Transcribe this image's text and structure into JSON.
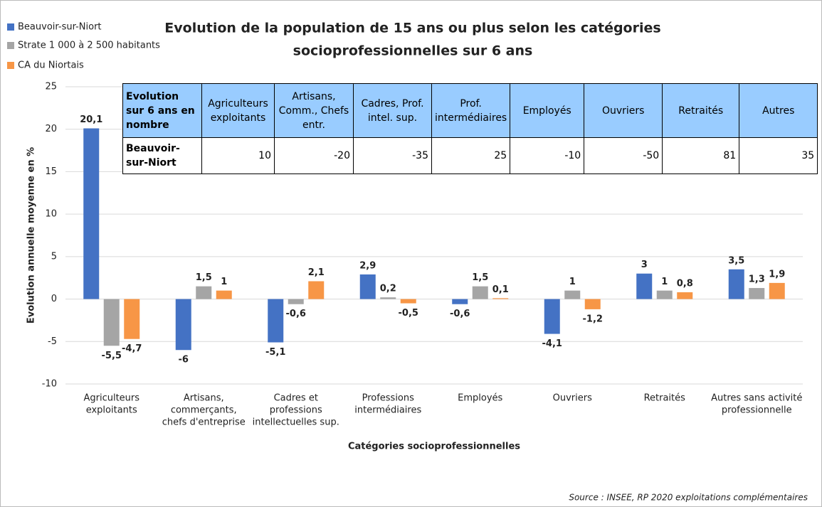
{
  "chart_data": {
    "type": "bar",
    "title": [
      "Evolution de la population de 15 ans ou plus selon les catégories",
      "socioprofessionnelles sur 6 ans"
    ],
    "x_label": "Catégories socioprofessionnelles",
    "y_label": "Evolution annuelle moyenne en %",
    "source": "Source : INSEE, RP 2020 exploitations complémentaires",
    "categories": [
      [
        "Agriculteurs",
        "exploitants"
      ],
      [
        "Artisans,",
        "commerçants,",
        "chefs d'entreprise"
      ],
      [
        "Cadres et",
        "professions",
        "intellectuelles sup."
      ],
      [
        "Professions",
        "intermédiaires"
      ],
      [
        "Employés"
      ],
      [
        "Ouvriers"
      ],
      [
        "Retraités"
      ],
      [
        "Autres sans activité",
        "professionnelle"
      ]
    ],
    "series": [
      {
        "name": "Beauvoir-sur-Niort",
        "color": "#4472c4",
        "values": [
          20.1,
          -6,
          -5.1,
          2.9,
          -0.6,
          -4.1,
          3,
          3.5
        ],
        "value_labels": [
          "20,1",
          "-6",
          "-5,1",
          "2,9",
          "-0,6",
          "-4,1",
          "3",
          "3,5"
        ]
      },
      {
        "name": "Strate 1 000 à 2 500 habitants",
        "color": "#a5a5a5",
        "values": [
          -5.5,
          1.5,
          -0.6,
          0.2,
          1.5,
          1,
          1,
          1.3
        ],
        "value_labels": [
          "-5,5",
          "1,5",
          "-0,6",
          "0,2",
          "1,5",
          "1",
          "1",
          "1,3"
        ]
      },
      {
        "name": "CA du Niortais",
        "color": "#f79646",
        "values": [
          -4.7,
          1,
          2.1,
          -0.5,
          0.1,
          -1.2,
          0.8,
          1.9
        ],
        "value_labels": [
          "-4,7",
          "1",
          "2,1",
          "-0,5",
          "0,1",
          "-1,2",
          "0,8",
          "1,9"
        ]
      }
    ],
    "ylim": [
      -10,
      25
    ],
    "yticks": [
      -10,
      -5,
      0,
      5,
      10,
      15,
      20,
      25
    ],
    "grid": true
  },
  "table": {
    "header": [
      "Evolution sur 6 ans en nombre",
      "Agriculteurs exploitants",
      "Artisans, Comm., Chefs entr.",
      "Cadres, Prof. intel. sup.",
      "Prof. intermédiaires",
      "Employés",
      "Ouvriers",
      "Retraités",
      "Autres"
    ],
    "rows": [
      [
        "Beauvoir-sur-Niort",
        10,
        -20,
        -35,
        25,
        -10,
        -50,
        81,
        35
      ]
    ]
  }
}
